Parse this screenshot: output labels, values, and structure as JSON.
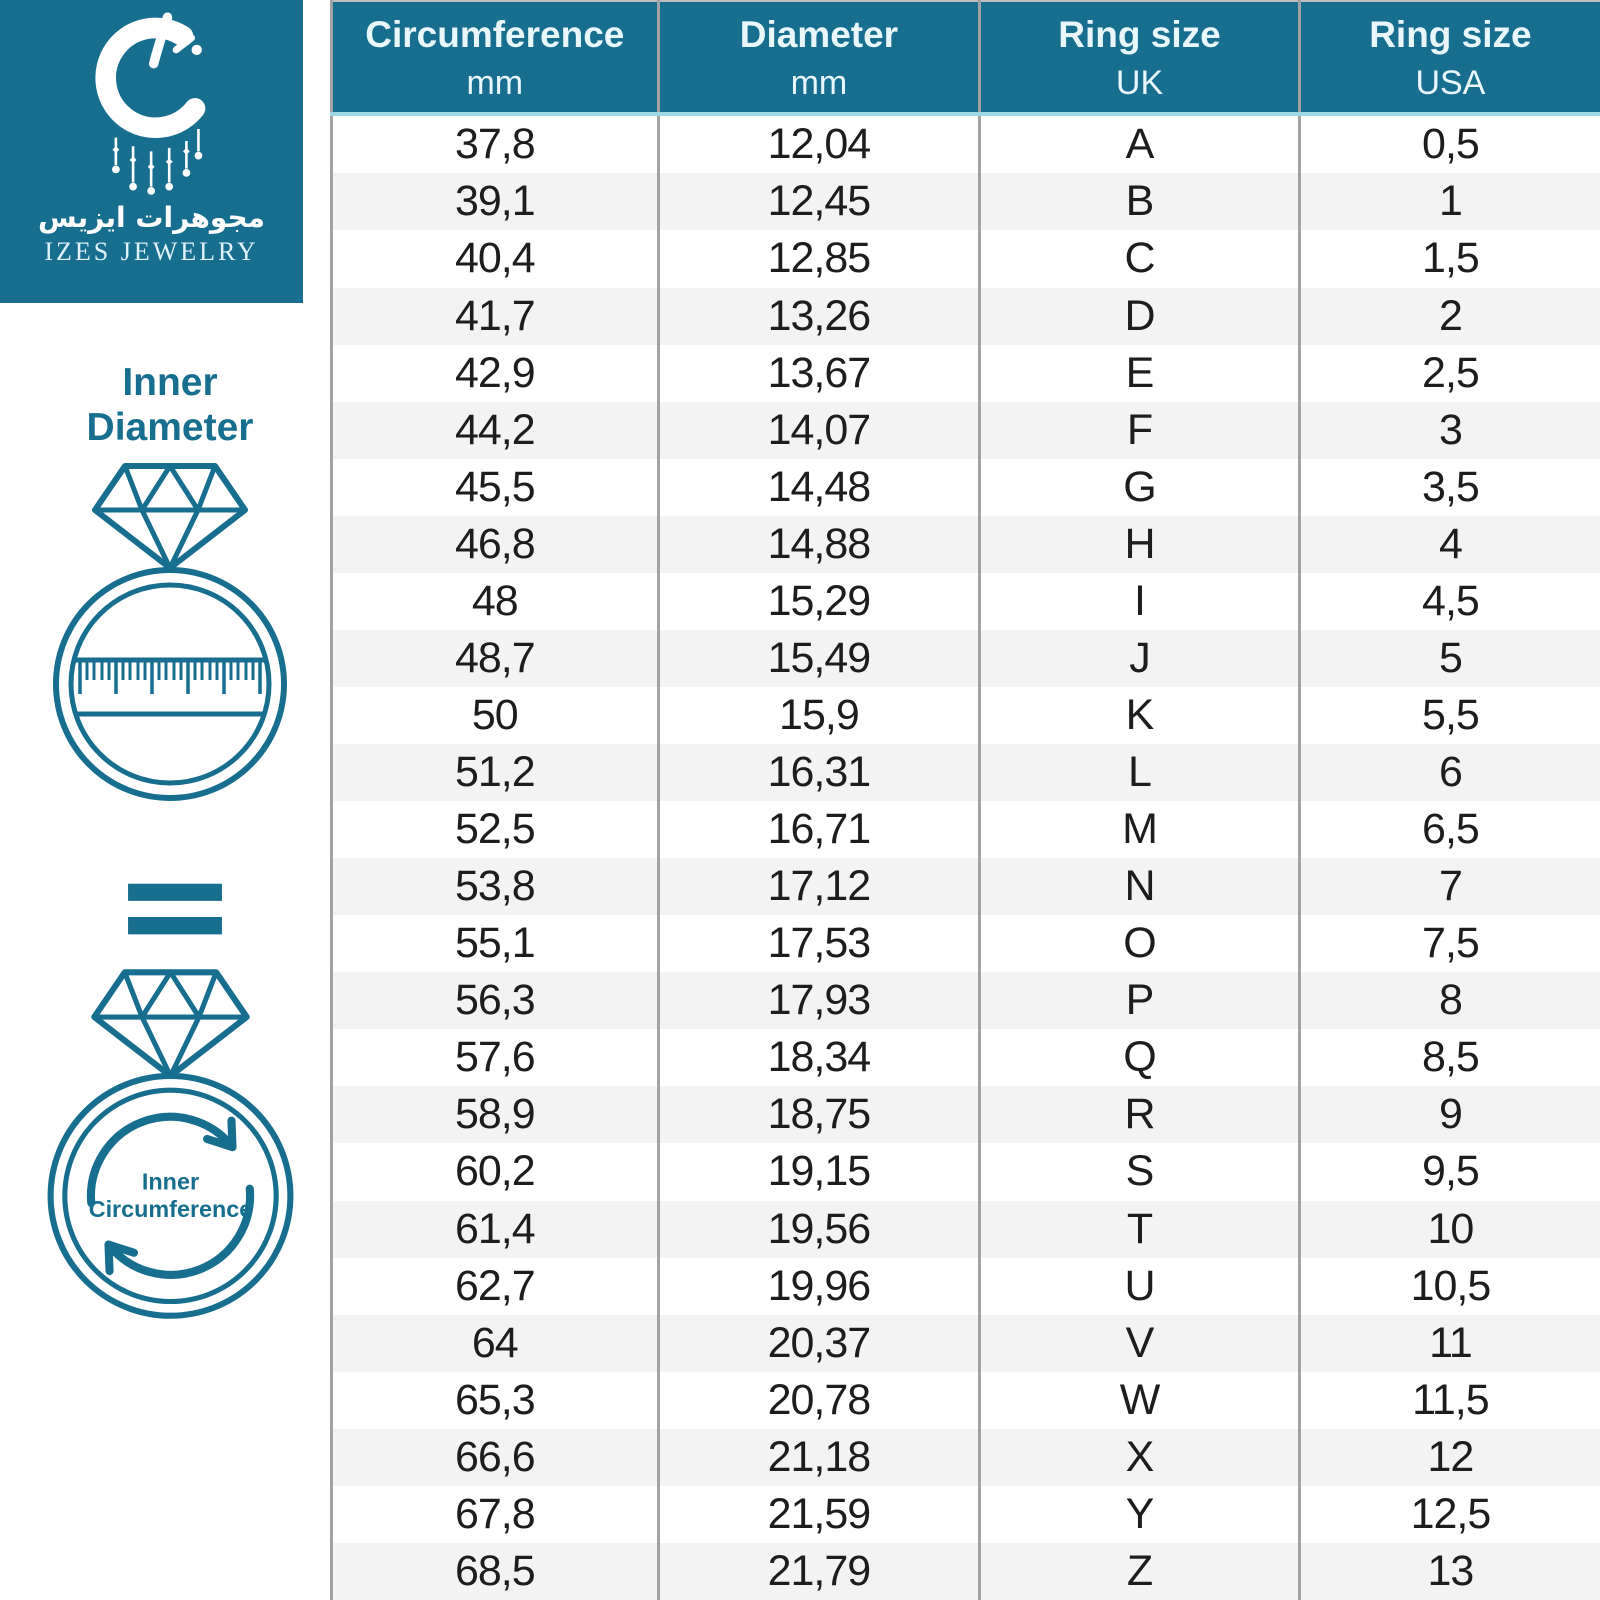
{
  "brand": {
    "arabic_name": "مجوهرات ايزيس",
    "latin_name": "IZES JEWELRY"
  },
  "sidebar": {
    "inner_diameter_label": {
      "line1": "Inner",
      "line2": "Diameter"
    },
    "equals_sign": "=",
    "inner_circumference_label": {
      "line1": "Inner",
      "line2": "Circumference"
    }
  },
  "colors": {
    "teal": "#176e8f",
    "header_text": "#e9f7fb",
    "row_white": "#ffffff",
    "row_alt": "#f3f3f4",
    "grid_line": "#a2a2a2",
    "header_underline": "#9fd6e3",
    "cell_text": "#1d1d1d"
  },
  "chart_data": {
    "type": "table",
    "columns": [
      {
        "label": "Circumference",
        "unit": "mm"
      },
      {
        "label": "Diameter",
        "unit": "mm"
      },
      {
        "label": "Ring size",
        "unit": "UK"
      },
      {
        "label": "Ring size",
        "unit": "USA"
      }
    ],
    "rows": [
      [
        "37,8",
        "12,04",
        "A",
        "0,5"
      ],
      [
        "39,1",
        "12,45",
        "B",
        "1"
      ],
      [
        "40,4",
        "12,85",
        "C",
        "1,5"
      ],
      [
        "41,7",
        "13,26",
        "D",
        "2"
      ],
      [
        "42,9",
        "13,67",
        "E",
        "2,5"
      ],
      [
        "44,2",
        "14,07",
        "F",
        "3"
      ],
      [
        "45,5",
        "14,48",
        "G",
        "3,5"
      ],
      [
        "46,8",
        "14,88",
        "H",
        "4"
      ],
      [
        "48",
        "15,29",
        "I",
        "4,5"
      ],
      [
        "48,7",
        "15,49",
        "J",
        "5"
      ],
      [
        "50",
        "15,9",
        "K",
        "5,5"
      ],
      [
        "51,2",
        "16,31",
        "L",
        "6"
      ],
      [
        "52,5",
        "16,71",
        "M",
        "6,5"
      ],
      [
        "53,8",
        "17,12",
        "N",
        "7"
      ],
      [
        "55,1",
        "17,53",
        "O",
        "7,5"
      ],
      [
        "56,3",
        "17,93",
        "P",
        "8"
      ],
      [
        "57,6",
        "18,34",
        "Q",
        "8,5"
      ],
      [
        "58,9",
        "18,75",
        "R",
        "9"
      ],
      [
        "60,2",
        "19,15",
        "S",
        "9,5"
      ],
      [
        "61,4",
        "19,56",
        "T",
        "10"
      ],
      [
        "62,7",
        "19,96",
        "U",
        "10,5"
      ],
      [
        "64",
        "20,37",
        "V",
        "11"
      ],
      [
        "65,3",
        "20,78",
        "W",
        "11,5"
      ],
      [
        "66,6",
        "21,18",
        "X",
        "12"
      ],
      [
        "67,8",
        "21,59",
        "Y",
        "12,5"
      ],
      [
        "68,5",
        "21,79",
        "Z",
        "13"
      ]
    ]
  }
}
